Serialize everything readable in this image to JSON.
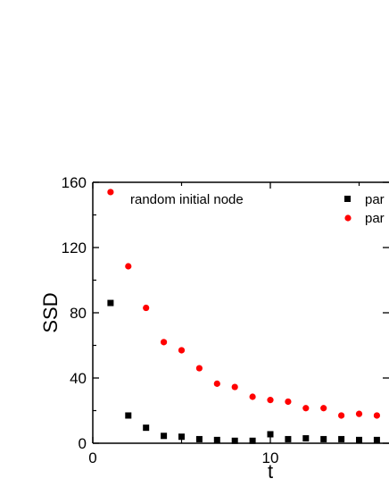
{
  "chart_data": {
    "type": "scatter",
    "title": "",
    "xlabel": "t",
    "ylabel": "SSD",
    "xlim": [
      0,
      17
    ],
    "ylim": [
      0,
      160
    ],
    "xticks": [
      0,
      10
    ],
    "yticks": [
      0,
      40,
      80,
      120,
      160
    ],
    "annotation": "random initial node",
    "legend_position": "top-right",
    "grid": false,
    "series": [
      {
        "name": "par",
        "marker": "square",
        "color": "#000000",
        "x": [
          1,
          2,
          3,
          4,
          5,
          6,
          7,
          8,
          9,
          10,
          11,
          12,
          13,
          14,
          15,
          16
        ],
        "y": [
          86,
          17,
          9.5,
          4.5,
          4,
          2.5,
          2,
          1.5,
          1.5,
          5.5,
          2.5,
          3,
          2.5,
          2.5,
          2,
          2
        ]
      },
      {
        "name": "par",
        "marker": "circle",
        "color": "#ff0000",
        "x": [
          1,
          2,
          3,
          4,
          5,
          6,
          7,
          8,
          9,
          10,
          11,
          12,
          13,
          14,
          15,
          16
        ],
        "y": [
          154,
          108.5,
          83,
          62,
          57,
          46,
          36.5,
          34.5,
          28.5,
          26.5,
          25.5,
          21.5,
          21.5,
          17,
          18,
          17
        ]
      }
    ]
  }
}
